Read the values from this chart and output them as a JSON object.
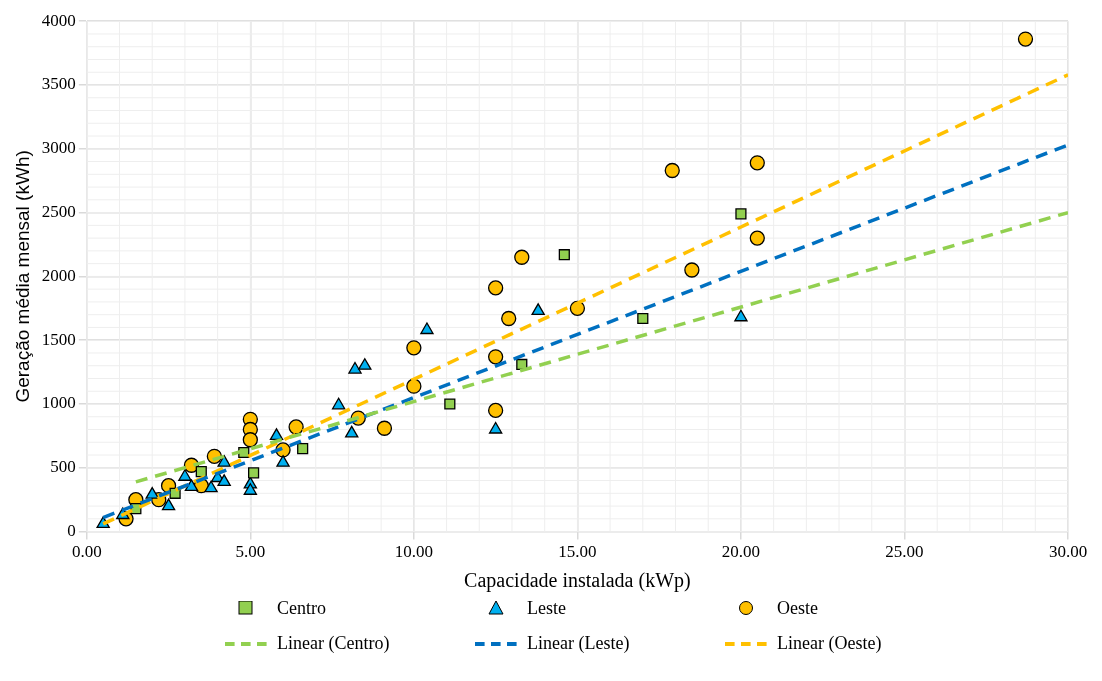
{
  "chart_data": {
    "type": "scatter",
    "xlabel": "Capacidade instalada (kWp)",
    "ylabel": "Geração média mensal (kWh)",
    "xlim": [
      0,
      30
    ],
    "ylim": [
      0,
      4000
    ],
    "xticks": [
      {
        "value": 0,
        "label": "0.00"
      },
      {
        "value": 5,
        "label": "5.00"
      },
      {
        "value": 10,
        "label": "10.00"
      },
      {
        "value": 15,
        "label": "15.00"
      },
      {
        "value": 20,
        "label": "20.00"
      },
      {
        "value": 25,
        "label": "25.00"
      },
      {
        "value": 30,
        "label": "30.00"
      }
    ],
    "yticks": [
      0,
      500,
      1000,
      1500,
      2000,
      2500,
      3000,
      3500,
      4000
    ],
    "grid": true,
    "legend": "bottom",
    "series": [
      {
        "name": "Centro",
        "color": "#92d050",
        "marker": "square",
        "x": [
          1.5,
          2.7,
          3.5,
          4.8,
          5.1,
          6.6,
          11.1,
          13.3,
          14.6,
          17,
          20
        ],
        "values": [
          180,
          300,
          470,
          620,
          460,
          650,
          1000,
          1310,
          2170,
          1670,
          2490
        ]
      },
      {
        "name": "Leste",
        "color": "#00b0f0",
        "marker": "triangle",
        "x": [
          0.5,
          1.1,
          2.0,
          2.5,
          3.0,
          3.2,
          3.8,
          4.0,
          4.2,
          4.2,
          5.0,
          5.0,
          5.8,
          6.0,
          7.7,
          8.1,
          8.2,
          8.5,
          10.4,
          12.5,
          13.8,
          20
        ],
        "values": [
          60,
          130,
          290,
          200,
          430,
          350,
          340,
          420,
          390,
          540,
          370,
          320,
          750,
          540,
          990,
          770,
          1270,
          1300,
          1580,
          800,
          1730,
          1680
        ]
      },
      {
        "name": "Oeste",
        "color": "#ffc000",
        "marker": "circle",
        "x": [
          1.2,
          1.5,
          2.2,
          2.5,
          3.2,
          3.5,
          3.9,
          5,
          5,
          5,
          6,
          6.4,
          8.3,
          9.1,
          10,
          10,
          12.5,
          12.5,
          12.5,
          12.9,
          13.3,
          15,
          17.9,
          18.5,
          20.5,
          20.5,
          28.7
        ],
        "values": [
          100,
          250,
          250,
          360,
          520,
          360,
          590,
          880,
          800,
          720,
          640,
          820,
          890,
          810,
          1440,
          1140,
          1910,
          1370,
          950,
          1670,
          2150,
          1750,
          2830,
          2050,
          2890,
          2300,
          3860
        ]
      },
      {
        "name": "Linear (Centro)",
        "type": "line",
        "line_style": "dashed",
        "marker": "none",
        "color": "#92d050",
        "x": [
          1.5,
          30
        ],
        "values": [
          390,
          2500
        ]
      },
      {
        "name": "Linear (Leste)",
        "type": "line",
        "line_style": "dashed",
        "marker": "none",
        "color": "#0070c0",
        "x": [
          0.5,
          30
        ],
        "values": [
          110,
          3030
        ]
      },
      {
        "name": "Linear (Oeste)",
        "type": "line",
        "line_style": "dashed",
        "marker": "none",
        "color": "#ffc000",
        "x": [
          0.5,
          30
        ],
        "values": [
          60,
          3580
        ]
      }
    ]
  }
}
